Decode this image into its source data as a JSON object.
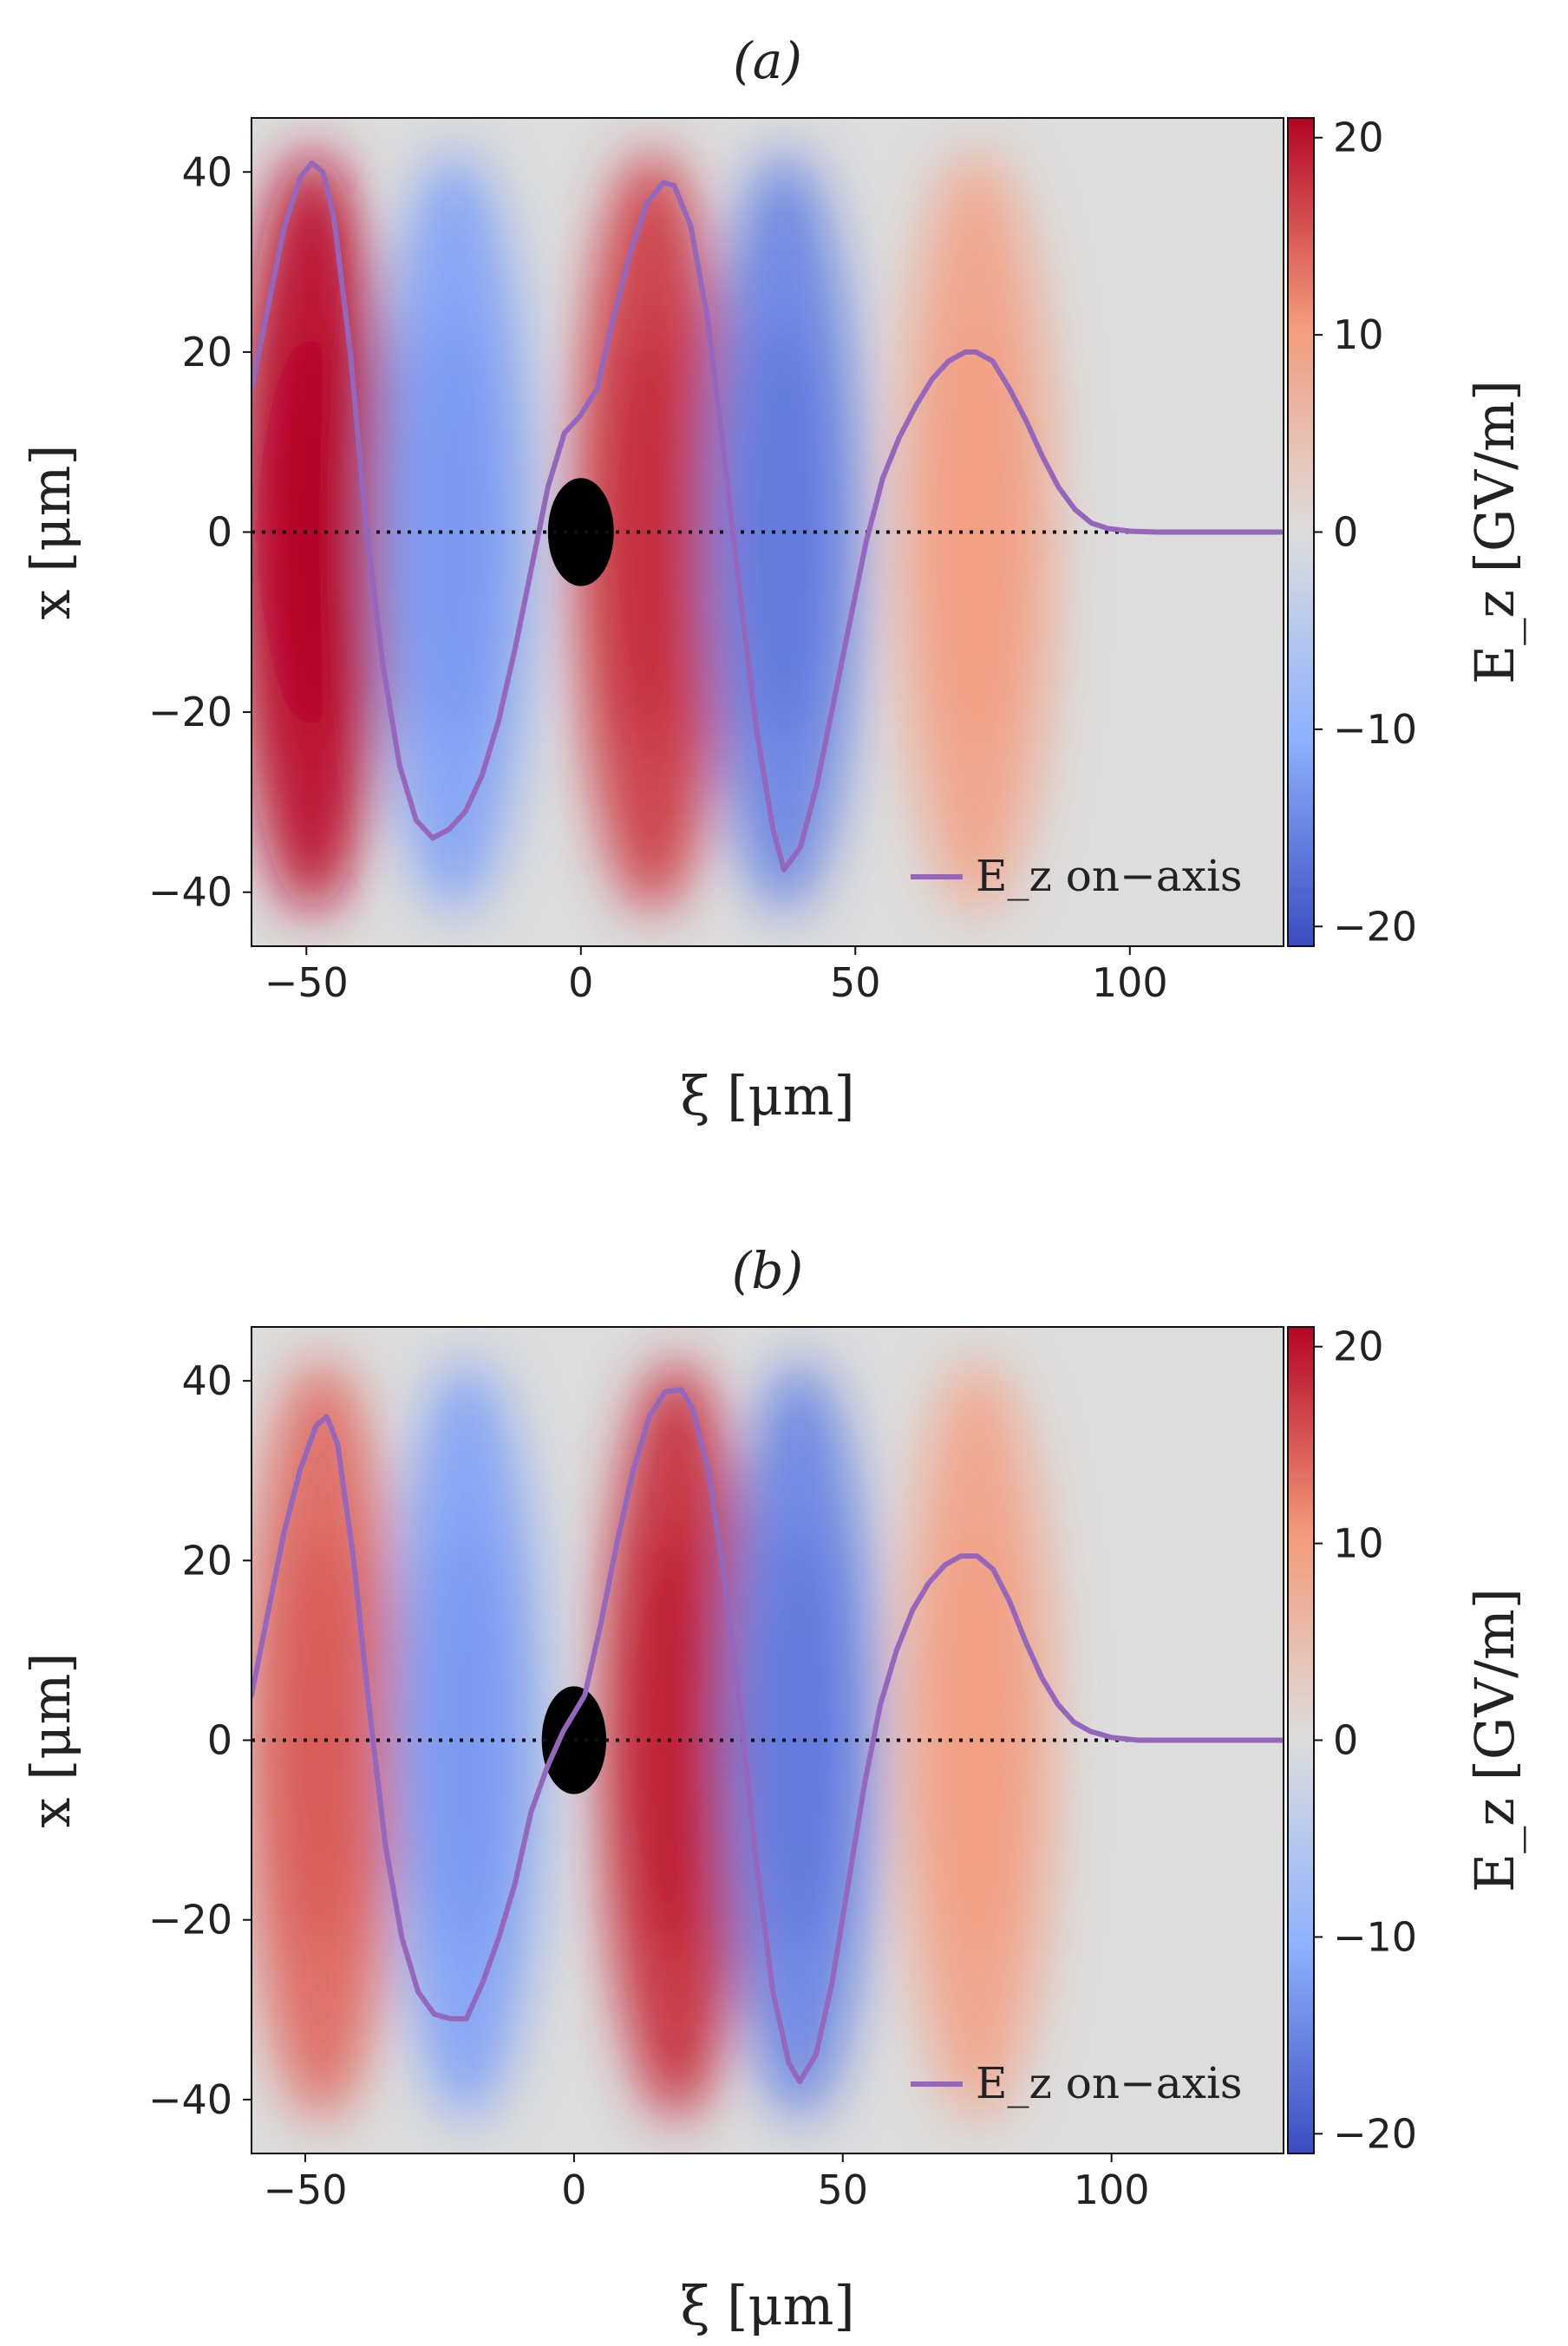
{
  "chart_data": [
    {
      "type": "heatmap",
      "title": "(a)",
      "xlabel": "ξ [μm]",
      "ylabel": "x [μm]",
      "xlim": [
        -60,
        128
      ],
      "ylim": [
        -46,
        46
      ],
      "xticks": [
        -50,
        0,
        50,
        100
      ],
      "xtick_labels": [
        "−50",
        "0",
        "50",
        "100"
      ],
      "yticks": [
        40,
        20,
        0,
        -20,
        -40
      ],
      "ytick_labels": [
        "40",
        "20",
        "0",
        "−20",
        "−40"
      ],
      "colorbar": {
        "label": "E_z [GV/m]",
        "range": [
          -21,
          21
        ],
        "ticks": [
          20,
          10,
          0,
          -10,
          -20
        ],
        "tick_labels": [
          "20",
          "10",
          "0",
          "−10",
          "−20"
        ],
        "colormap": "coolwarm"
      },
      "field_lobes": [
        {
          "center_xi": -49,
          "amplitude": 20
        },
        {
          "center_xi": -23,
          "amplitude": -12
        },
        {
          "center_xi": 13,
          "amplitude": 17
        },
        {
          "center_xi": 37,
          "amplitude": -15
        },
        {
          "center_xi": 72,
          "amplitude": 9
        }
      ],
      "beam": {
        "center_xi": 0,
        "center_x": 0,
        "radius": 6
      },
      "axis_line": {
        "x": 0,
        "style": "dotted"
      },
      "series": [
        {
          "name": "E_z on−axis",
          "color": "#9467bd",
          "x": [
            -60,
            -57,
            -54,
            -51,
            -49,
            -47,
            -45,
            -42,
            -39,
            -36,
            -33,
            -30,
            -27,
            -24,
            -21,
            -18,
            -15,
            -12,
            -9,
            -6,
            -3,
            0,
            3,
            6,
            9,
            12,
            15,
            17,
            20,
            23,
            26,
            29,
            32,
            35,
            37,
            40,
            43,
            46,
            49,
            52,
            55,
            58,
            61,
            64,
            67,
            70,
            72,
            75,
            78,
            81,
            84,
            87,
            90,
            93,
            96,
            100,
            105,
            110,
            115,
            120,
            128
          ],
          "values": [
            16,
            25,
            34,
            39.5,
            41,
            40,
            35,
            20,
            0,
            -15,
            -26,
            -32,
            -34,
            -33,
            -31,
            -27,
            -21,
            -13,
            -4,
            5,
            11,
            13,
            16,
            24,
            31,
            36.5,
            38.8,
            38.5,
            34,
            24,
            9,
            -7,
            -22,
            -33,
            -37.5,
            -35,
            -28,
            -19,
            -10,
            -1,
            6,
            10.5,
            14,
            17,
            19,
            20,
            20,
            19,
            16,
            12.5,
            8.5,
            5,
            2.5,
            1,
            0.4,
            0.1,
            0,
            0,
            0,
            0,
            0
          ]
        }
      ],
      "legend": {
        "label": "E_z on−axis",
        "location": "lower-right"
      }
    },
    {
      "type": "heatmap",
      "title": "(b)",
      "xlabel": "ξ [μm]",
      "ylabel": "x [μm]",
      "xlim": [
        -60,
        132
      ],
      "ylim": [
        -46,
        46
      ],
      "xticks": [
        -50,
        0,
        50,
        100
      ],
      "xtick_labels": [
        "−50",
        "0",
        "50",
        "100"
      ],
      "yticks": [
        40,
        20,
        0,
        -20,
        -40
      ],
      "ytick_labels": [
        "40",
        "20",
        "0",
        "−20",
        "−40"
      ],
      "colorbar": {
        "label": "E_z [GV/m]",
        "range": [
          -21,
          21
        ],
        "ticks": [
          20,
          10,
          0,
          -10,
          -20
        ],
        "tick_labels": [
          "20",
          "10",
          "0",
          "−10",
          "−20"
        ],
        "colormap": "coolwarm"
      },
      "field_lobes": [
        {
          "center_xi": -47,
          "amplitude": 14
        },
        {
          "center_xi": -20,
          "amplitude": -12
        },
        {
          "center_xi": 19,
          "amplitude": 18
        },
        {
          "center_xi": 42,
          "amplitude": -15
        },
        {
          "center_xi": 75,
          "amplitude": 9
        }
      ],
      "beam": {
        "center_xi": 0,
        "center_x": 0,
        "radius": 6
      },
      "axis_line": {
        "x": 0,
        "style": "dotted"
      },
      "series": [
        {
          "name": "E_z on−axis",
          "color": "#9467bd",
          "x": [
            -60,
            -57,
            -54,
            -51,
            -48,
            -46,
            -44,
            -41,
            -38,
            -35,
            -32,
            -29,
            -26,
            -23,
            -20,
            -17,
            -14,
            -11,
            -8,
            -5,
            -2,
            0,
            2,
            5,
            8,
            11,
            14,
            17,
            20,
            22,
            25,
            28,
            31,
            34,
            37,
            40,
            42,
            45,
            48,
            51,
            54,
            57,
            60,
            63,
            66,
            69,
            72,
            75,
            78,
            81,
            84,
            87,
            90,
            93,
            96,
            100,
            105,
            110,
            115,
            120,
            132
          ],
          "values": [
            5,
            14,
            23,
            30,
            35,
            36,
            33,
            20,
            3,
            -12,
            -22,
            -28,
            -30.5,
            -31,
            -31,
            -27,
            -22,
            -16,
            -8,
            -3,
            1,
            3,
            5,
            13,
            22,
            30,
            36,
            38.8,
            39,
            37,
            30,
            18,
            3,
            -14,
            -28,
            -36,
            -38,
            -35,
            -27,
            -16,
            -5,
            4,
            10,
            14.5,
            17.5,
            19.5,
            20.5,
            20.5,
            19,
            15.5,
            11,
            7,
            4,
            2,
            1,
            0.3,
            0,
            0,
            0,
            0,
            0
          ]
        }
      ],
      "legend": {
        "label": "E_z on−axis",
        "location": "lower-right"
      }
    }
  ]
}
